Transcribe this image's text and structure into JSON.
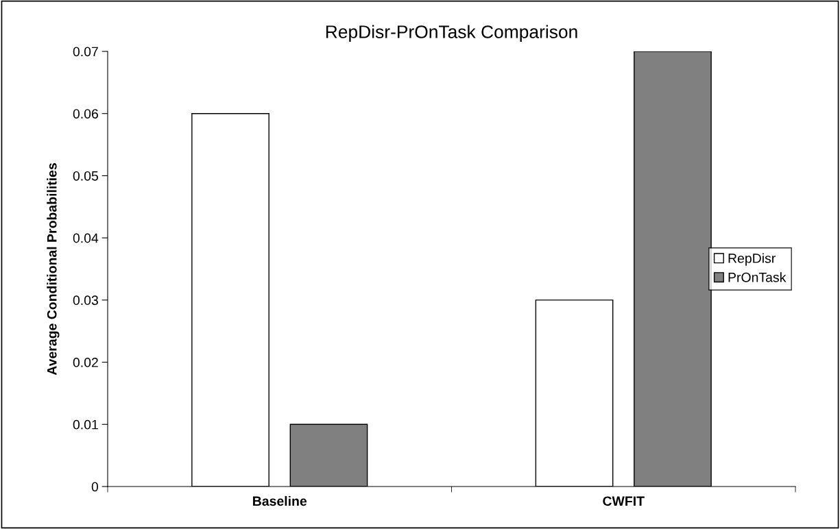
{
  "chart_data": {
    "type": "bar",
    "title": "RepDisr-PrOnTask Comparison",
    "ylabel": "Average Conditional Probabilities",
    "categories": [
      "Baseline",
      "CWFIT"
    ],
    "series": [
      {
        "name": "RepDisr",
        "color": "#ffffff",
        "values": [
          0.06,
          0.03
        ]
      },
      {
        "name": "PrOnTask",
        "color": "#808080",
        "values": [
          0.01,
          0.07
        ]
      }
    ],
    "ylim": [
      0,
      0.07
    ],
    "yticks": [
      0,
      0.01,
      0.02,
      0.03,
      0.04,
      0.05,
      0.06,
      0.07
    ],
    "grid": false,
    "legend": "right"
  }
}
